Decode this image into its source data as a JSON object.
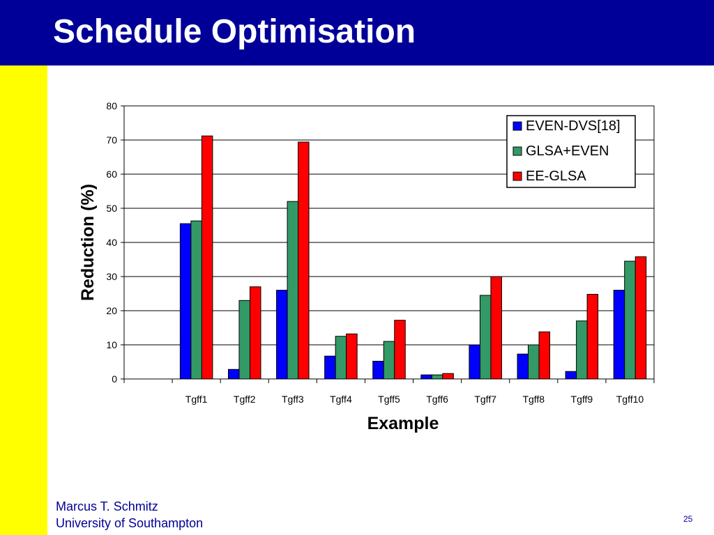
{
  "slide": {
    "title": "Schedule Optimisation",
    "author": "Marcus T. Schmitz",
    "university": "University of Southampton",
    "page_number": "25",
    "colors": {
      "header": "#000099",
      "sidebar": "#ffff00",
      "footer_text": "#000099"
    }
  },
  "chart_data": {
    "type": "bar",
    "title": "",
    "xlabel": "Example",
    "ylabel": "Reduction (%)",
    "ylim": [
      0,
      80
    ],
    "yticks": [
      0,
      10,
      20,
      30,
      40,
      50,
      60,
      70,
      80
    ],
    "grid": true,
    "legend_position": "top-right",
    "categories": [
      "",
      "Tgff1",
      "Tgff2",
      "Tgff3",
      "Tgff4",
      "Tgff5",
      "Tgff6",
      "Tgff7",
      "Tgff8",
      "Tgff9",
      "Tgff10"
    ],
    "series": [
      {
        "name": "EVEN-DVS[18]",
        "color": "#0000ff",
        "values": [
          null,
          45.5,
          2.8,
          26,
          6.7,
          5.2,
          1.2,
          10,
          7.3,
          2.2,
          26
        ]
      },
      {
        "name": "GLSA+EVEN",
        "color": "#339966",
        "values": [
          null,
          46.3,
          23,
          52,
          12.5,
          11,
          1.2,
          24.5,
          10,
          17,
          34.5
        ]
      },
      {
        "name": "EE-GLSA",
        "color": "#ff0000",
        "values": [
          null,
          71.2,
          27,
          69.4,
          13.2,
          17.2,
          1.6,
          30,
          13.8,
          24.8,
          35.8
        ]
      }
    ]
  }
}
